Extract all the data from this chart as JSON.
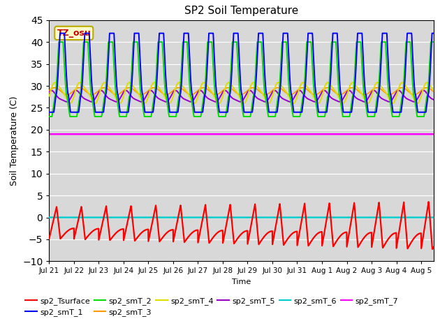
{
  "title": "SP2 Soil Temperature",
  "ylabel": "Soil Temperature (C)",
  "xlabel": "Time",
  "ylim": [
    -10,
    45
  ],
  "xlim_start": 0,
  "xlim_end": 15.5,
  "tick_labels": [
    "Jul 21",
    "Jul 22",
    "Jul 23",
    "Jul 24",
    "Jul 25",
    "Jul 26",
    "Jul 27",
    "Jul 28",
    "Jul 29",
    "Jul 30",
    "Jul 31",
    "Aug 1",
    "Aug 2",
    "Aug 3",
    "Aug 4",
    "Aug 5"
  ],
  "yticks": [
    -10,
    -5,
    0,
    5,
    10,
    15,
    20,
    25,
    30,
    35,
    40,
    45
  ],
  "plot_bg": "#d8d8d8",
  "series_colors": {
    "sp2_Tsurface": "#ff0000",
    "sp2_smT_1": "#0000ff",
    "sp2_smT_2": "#00dd00",
    "sp2_smT_3": "#ff9900",
    "sp2_smT_4": "#dddd00",
    "sp2_smT_5": "#9900cc",
    "sp2_smT_6": "#00cccc",
    "sp2_smT_7": "#ff00ff"
  },
  "annotation_text": "TZ_osu",
  "annotation_color": "#cc0000",
  "annotation_bg": "#ffffcc",
  "annotation_border": "#bbaa00",
  "n_days": 15,
  "smT6_value": 0.0,
  "smT7_value": 19.0
}
